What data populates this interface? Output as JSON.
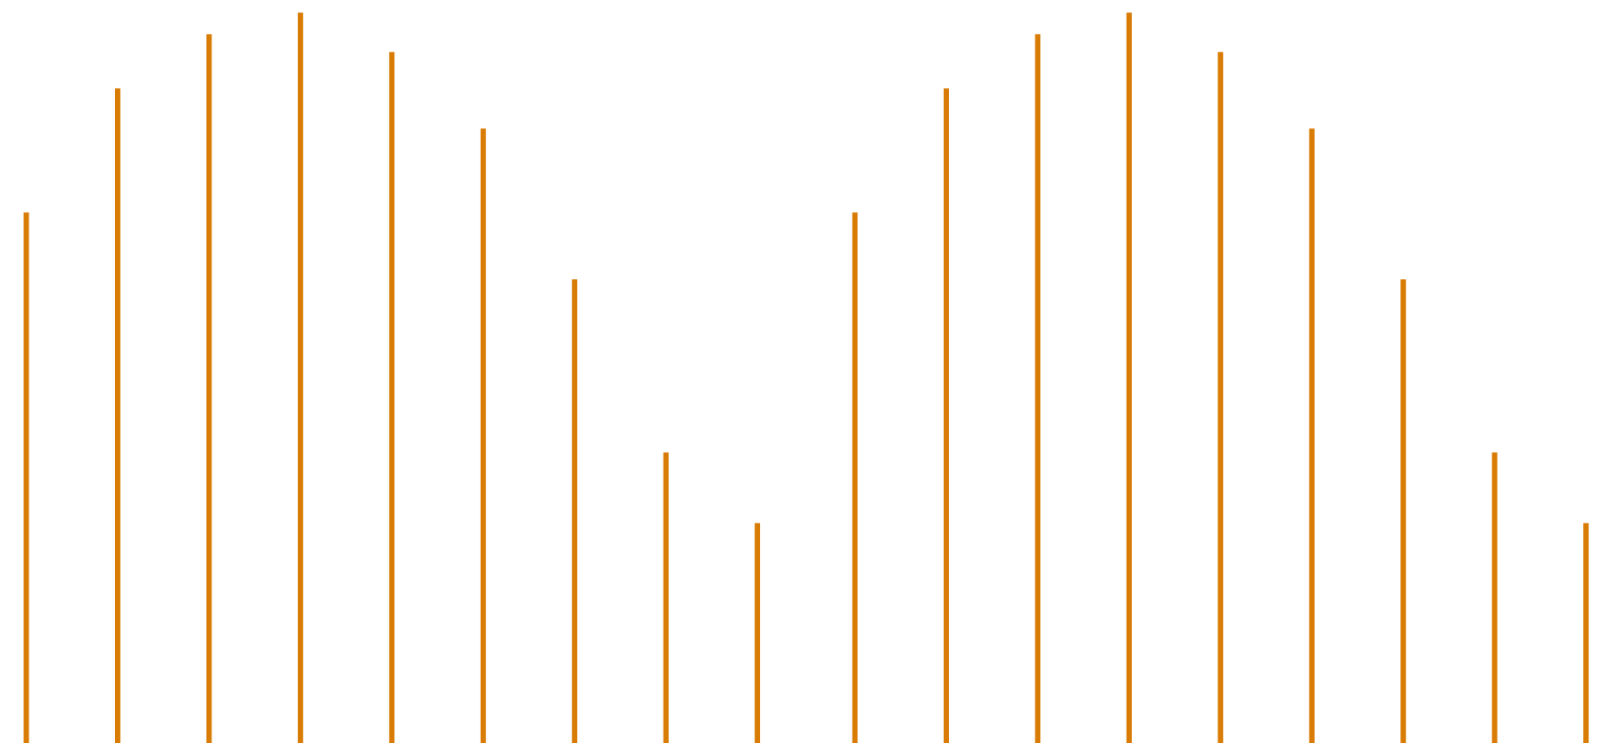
{
  "chart_data": {
    "type": "bar",
    "series": [
      {
        "color": "#d97c06",
        "values": [
          71.4,
          88.1,
          95.4,
          98.3,
          93.0,
          82.7,
          62.4,
          39.1,
          29.6
        ]
      },
      {
        "color": "#d97c06",
        "values": [
          71.4,
          88.1,
          95.4,
          98.3,
          93.0,
          82.7,
          62.4,
          39.1,
          29.6
        ]
      }
    ],
    "ylim": [
      0,
      100
    ]
  }
}
